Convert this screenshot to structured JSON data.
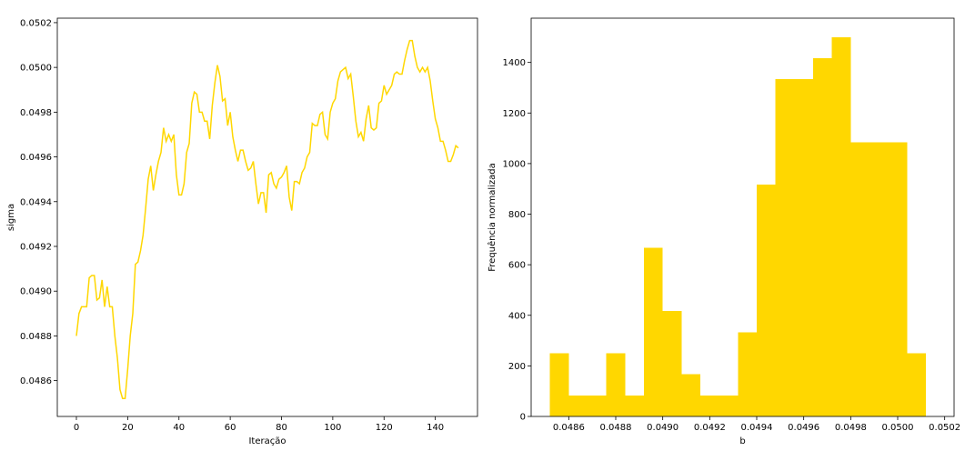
{
  "chart_data": [
    {
      "type": "line",
      "x_label": "Iteração",
      "y_label": "sigma",
      "color": "#ffd700",
      "x": [
        0,
        1,
        2,
        3,
        4,
        5,
        6,
        7,
        8,
        9,
        10,
        11,
        12,
        13,
        14,
        15,
        16,
        17,
        18,
        19,
        20,
        21,
        22,
        23,
        24,
        25,
        26,
        27,
        28,
        29,
        30,
        31,
        32,
        33,
        34,
        35,
        36,
        37,
        38,
        39,
        40,
        41,
        42,
        43,
        44,
        45,
        46,
        47,
        48,
        49,
        50,
        51,
        52,
        53,
        54,
        55,
        56,
        57,
        58,
        59,
        60,
        61,
        62,
        63,
        64,
        65,
        66,
        67,
        68,
        69,
        70,
        71,
        72,
        73,
        74,
        75,
        76,
        77,
        78,
        79,
        80,
        81,
        82,
        83,
        84,
        85,
        86,
        87,
        88,
        89,
        90,
        91,
        92,
        93,
        94,
        95,
        96,
        97,
        98,
        99,
        100,
        101,
        102,
        103,
        104,
        105,
        106,
        107,
        108,
        109,
        110,
        111,
        112,
        113,
        114,
        115,
        116,
        117,
        118,
        119,
        120,
        121,
        122,
        123,
        124,
        125,
        126,
        127,
        128,
        129,
        130,
        131,
        132,
        133,
        134,
        135,
        136,
        137,
        138,
        139,
        140,
        141,
        142,
        143,
        144,
        145,
        146,
        147,
        148,
        149
      ],
      "values": [
        0.0488,
        0.0489,
        0.04893,
        0.04893,
        0.04893,
        0.04906,
        0.04907,
        0.04907,
        0.04896,
        0.04897,
        0.04905,
        0.04893,
        0.04902,
        0.04893,
        0.04893,
        0.0488,
        0.0487,
        0.04856,
        0.04852,
        0.04852,
        0.04865,
        0.0488,
        0.0489,
        0.04912,
        0.04913,
        0.04918,
        0.04925,
        0.04937,
        0.0495,
        0.04956,
        0.04945,
        0.04952,
        0.04958,
        0.04962,
        0.04973,
        0.04967,
        0.0497,
        0.04967,
        0.0497,
        0.04952,
        0.04943,
        0.04943,
        0.04948,
        0.04962,
        0.04966,
        0.04984,
        0.04989,
        0.04988,
        0.0498,
        0.0498,
        0.04976,
        0.04976,
        0.04968,
        0.04983,
        0.04993,
        0.05001,
        0.04996,
        0.04985,
        0.04986,
        0.04974,
        0.0498,
        0.04969,
        0.04963,
        0.04958,
        0.04963,
        0.04963,
        0.04958,
        0.04954,
        0.04955,
        0.04958,
        0.04948,
        0.04939,
        0.04944,
        0.04944,
        0.04935,
        0.04952,
        0.04953,
        0.04948,
        0.04946,
        0.0495,
        0.04951,
        0.04953,
        0.04956,
        0.04942,
        0.04936,
        0.04949,
        0.04949,
        0.04948,
        0.04953,
        0.04955,
        0.0496,
        0.04962,
        0.04975,
        0.04974,
        0.04974,
        0.04979,
        0.0498,
        0.0497,
        0.04968,
        0.0498,
        0.04984,
        0.04986,
        0.04994,
        0.04998,
        0.04999,
        0.05,
        0.04995,
        0.04997,
        0.04987,
        0.04976,
        0.04969,
        0.04971,
        0.04967,
        0.04977,
        0.04983,
        0.04973,
        0.04972,
        0.04973,
        0.04984,
        0.04985,
        0.04992,
        0.04988,
        0.0499,
        0.04992,
        0.04997,
        0.04998,
        0.04997,
        0.04997,
        0.05003,
        0.05008,
        0.05012,
        0.05012,
        0.05005,
        0.05,
        0.04998,
        0.05,
        0.04998,
        0.05,
        0.04994,
        0.04985,
        0.04977,
        0.04973,
        0.04967,
        0.04967,
        0.04963,
        0.04958,
        0.04958,
        0.04961,
        0.04965,
        0.04964
      ],
      "xlim": [
        -7.45,
        156.45
      ],
      "xticks": [
        0,
        20,
        40,
        60,
        80,
        100,
        120,
        140
      ],
      "ylim": [
        0.04844,
        0.05022
      ],
      "yticks": [
        0.0486,
        0.0488,
        {
          "value": 0.049,
          "label": "0.0490"
        },
        0.0492,
        0.0494,
        0.0496,
        0.0498,
        {
          "value": 0.05,
          "label": "0.0500"
        },
        0.0502
      ]
    },
    {
      "type": "histogram",
      "x_label": "b",
      "y_label": "Frequência normalizada",
      "color": "#ffd700",
      "bins": [
        0.04852,
        0.0486,
        0.04868,
        0.04876,
        0.04884,
        0.04892,
        0.049,
        0.04908,
        0.04916,
        0.04924,
        0.04932,
        0.0494,
        0.04948,
        0.04956,
        0.04964,
        0.04972,
        0.0498,
        0.04988,
        0.04996,
        0.05004,
        0.05012
      ],
      "values": [
        250,
        83.3,
        83.3,
        250,
        83.3,
        666.7,
        416.7,
        166.7,
        83.3,
        83.3,
        333.3,
        916.7,
        1333.3,
        1333.3,
        1416.7,
        1500,
        1083.3,
        1083.3,
        1083.3,
        250
      ],
      "xlim": [
        0.04844,
        0.05024
      ],
      "xticks": [
        0.0486,
        0.0488,
        {
          "value": 0.049,
          "label": "0.0490"
        },
        0.0492,
        0.0494,
        0.0496,
        0.0498,
        {
          "value": 0.05,
          "label": "0.0500"
        },
        0.0502
      ],
      "ylim": [
        0,
        1575
      ],
      "yticks": [
        0,
        200,
        400,
        600,
        800,
        1000,
        1200,
        1400
      ]
    }
  ]
}
